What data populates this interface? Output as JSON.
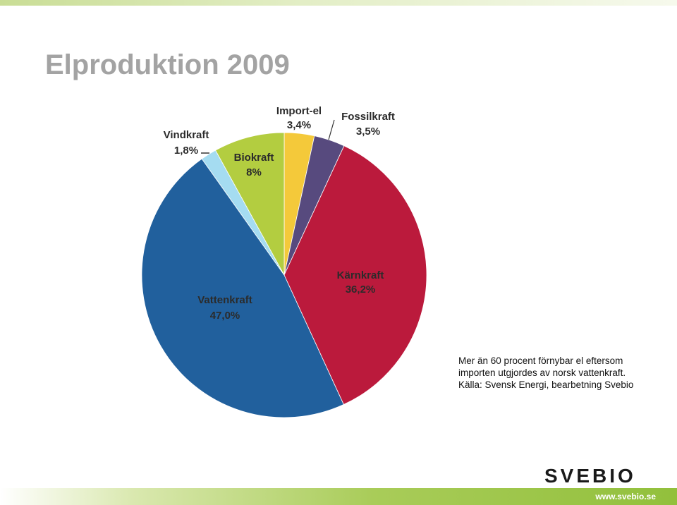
{
  "slide": {
    "title": "Elproduktion 2009",
    "note_lines": [
      "Mer än 60 procent förnybar el eftersom",
      "importen utgjordes av norsk vattenkraft.",
      "Källa: Svensk Energi, bearbetning Svebio"
    ],
    "logo_text": "SVEBIO",
    "url": "www.svebio.se"
  },
  "colors": {
    "accent_green": "#8dc63f",
    "title_gray": "#a3a3a3"
  },
  "chart_data": {
    "type": "pie",
    "slices": [
      {
        "label": "Import-el",
        "value_label": "3,4%",
        "value": 3.4,
        "color": "#f4c93a"
      },
      {
        "label": "Fossilkraft",
        "value_label": "3,5%",
        "value": 3.5,
        "color": "#574a7e"
      },
      {
        "label": "Kärnkraft",
        "value_label": "36,2%",
        "value": 36.2,
        "color": "#bb1a3c"
      },
      {
        "label": "Vattenkraft",
        "value_label": "47,0%",
        "value": 47.0,
        "color": "#21609d"
      },
      {
        "label": "Vindkraft",
        "value_label": "1,8%",
        "value": 1.8,
        "color": "#a5dcf1"
      },
      {
        "label": "Biokraft",
        "value_label": "8%",
        "value": 8.0,
        "color": "#b3cd40"
      }
    ]
  }
}
